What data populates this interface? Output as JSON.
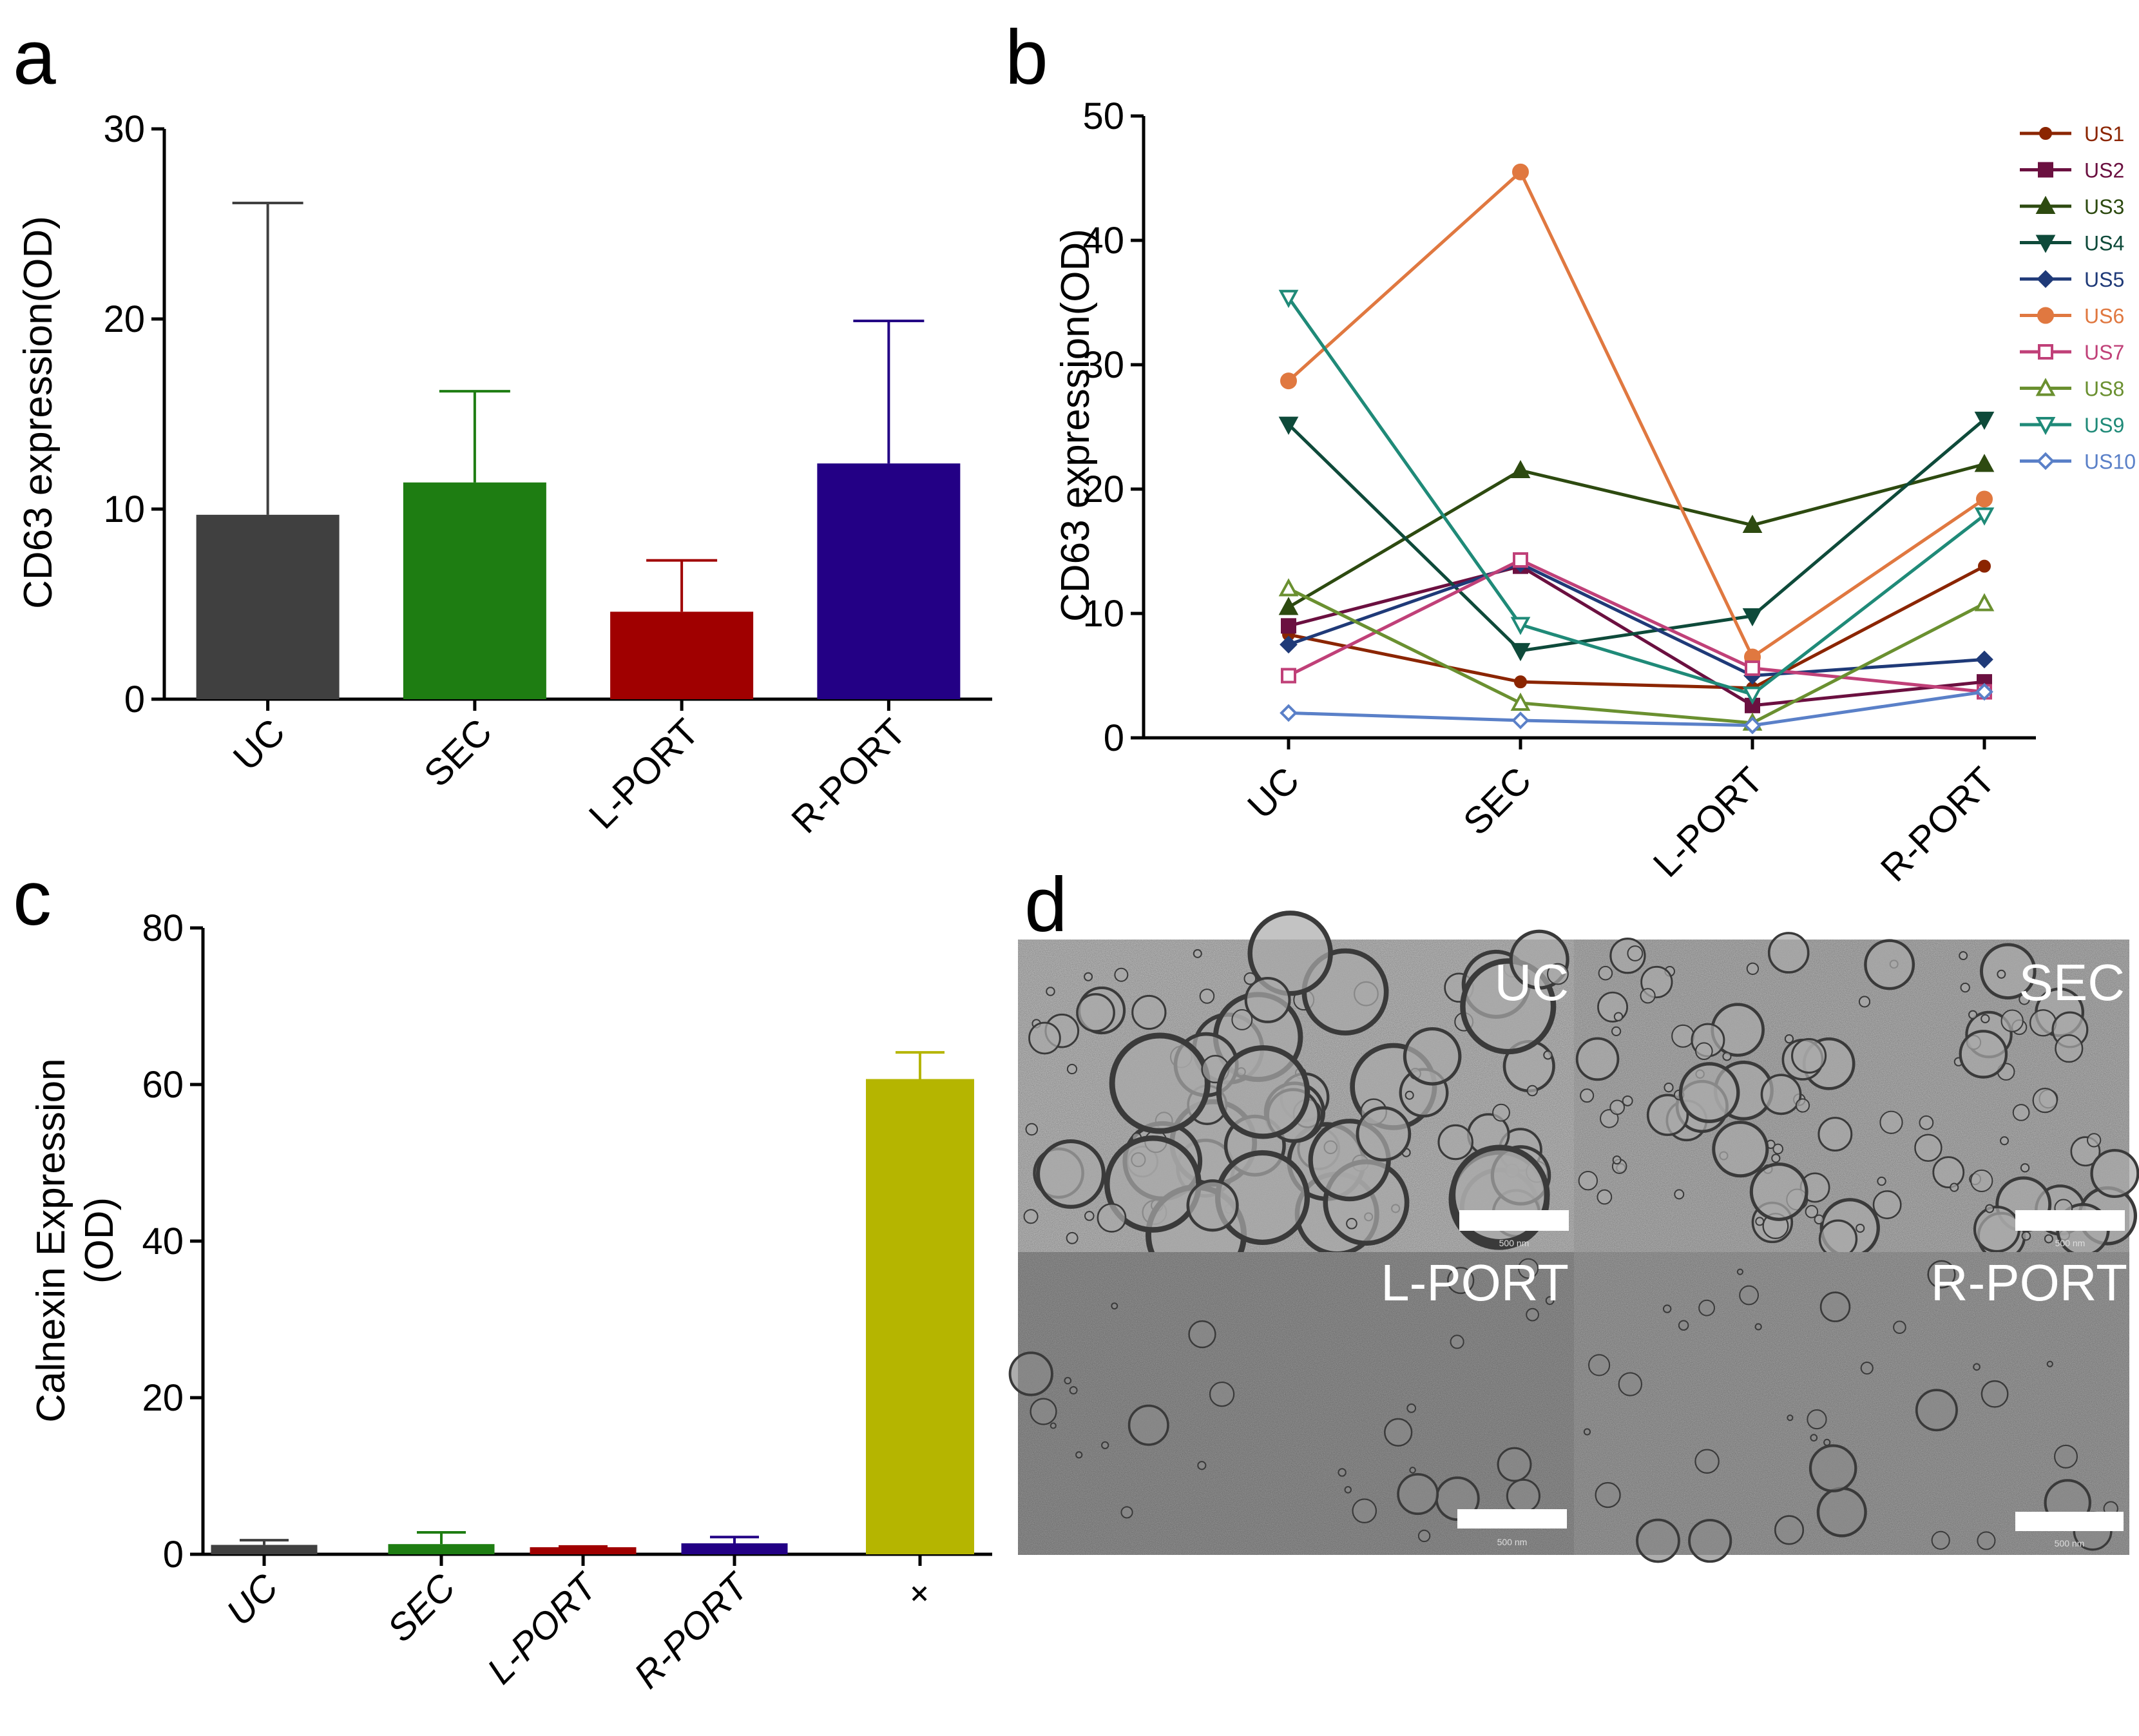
{
  "panels": {
    "a": "a",
    "b": "b",
    "c": "c",
    "d": "d"
  },
  "chart_data": [
    {
      "panel": "a",
      "type": "bar",
      "categories": [
        "UC",
        "SEC",
        "L-PORT",
        "R-PORT"
      ],
      "values": [
        9.7,
        11.4,
        4.6,
        12.4
      ],
      "error_upper": [
        26.1,
        16.2,
        7.3,
        19.9
      ],
      "colors": [
        "#404040",
        "#1e7d12",
        "#a00000",
        "#230085"
      ],
      "title": "",
      "xlabel": "",
      "ylabel": "CD63 expression(OD)",
      "ylim": [
        0,
        30
      ],
      "yticks": [
        0,
        10,
        20,
        30
      ],
      "grid": false
    },
    {
      "panel": "b",
      "type": "line",
      "categories": [
        "UC",
        "SEC",
        "L-PORT",
        "R-PORT"
      ],
      "ylabel": "CD63 expression(OD)",
      "xlabel": "",
      "title": "",
      "ylim": [
        0,
        50
      ],
      "yticks": [
        0,
        10,
        20,
        30,
        40,
        50
      ],
      "legend": "top-right",
      "grid": false,
      "series": [
        {
          "name": "US1",
          "values": [
            8.3,
            4.5,
            4.0,
            13.8
          ],
          "color": "#8b2500",
          "marker": "circle-small"
        },
        {
          "name": "US2",
          "values": [
            9.0,
            13.8,
            2.6,
            4.5
          ],
          "color": "#6b1040",
          "marker": "square"
        },
        {
          "name": "US3",
          "values": [
            10.5,
            21.5,
            17.1,
            22.0
          ],
          "color": "#2d4a10",
          "marker": "triangle-up"
        },
        {
          "name": "US4",
          "values": [
            25.2,
            7.0,
            9.8,
            25.6
          ],
          "color": "#0e4a3a",
          "marker": "triangle-down"
        },
        {
          "name": "US5",
          "values": [
            7.5,
            14.0,
            5.0,
            6.3
          ],
          "color": "#1f3a78",
          "marker": "diamond"
        },
        {
          "name": "US6",
          "values": [
            28.7,
            45.5,
            6.5,
            19.2
          ],
          "color": "#e07840",
          "marker": "circle"
        },
        {
          "name": "US7",
          "values": [
            5.0,
            14.3,
            5.6,
            3.7
          ],
          "color": "#c04078",
          "marker": "square-open"
        },
        {
          "name": "US8",
          "values": [
            12.0,
            2.8,
            1.2,
            10.8
          ],
          "color": "#6a9030",
          "marker": "triangle-up-open"
        },
        {
          "name": "US9",
          "values": [
            35.4,
            9.1,
            3.5,
            17.9
          ],
          "color": "#1f8a78",
          "marker": "triangle-down-open"
        },
        {
          "name": "US10",
          "values": [
            2.0,
            1.4,
            1.0,
            3.7
          ],
          "color": "#5a80c8",
          "marker": "diamond-open"
        }
      ]
    },
    {
      "panel": "c",
      "type": "bar",
      "categories": [
        "UC",
        "SEC",
        "L-PORT",
        "R-PORT",
        "+"
      ],
      "values": [
        1.2,
        1.3,
        0.9,
        1.4,
        60.7
      ],
      "error_upper": [
        1.8,
        2.8,
        1.0,
        2.2,
        64.1
      ],
      "colors": [
        "#404040",
        "#1e7d12",
        "#a00000",
        "#230085",
        "#b5b500"
      ],
      "title": "",
      "xlabel": "",
      "ylabel": [
        "Calnexin Expression",
        "(OD)"
      ],
      "ylim": [
        0,
        80
      ],
      "yticks": [
        0,
        20,
        40,
        60,
        80
      ],
      "grid": false
    }
  ],
  "tem": {
    "labels": [
      "UC",
      "SEC",
      "L-PORT",
      "R-PORT"
    ],
    "scale_text": "500 nm"
  }
}
